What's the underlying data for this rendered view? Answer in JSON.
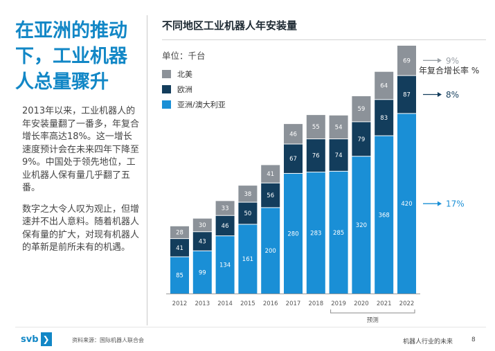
{
  "left": {
    "headline": "在亚洲的推动下，工业机器人总量骤升",
    "paragraph1": "2013年以来，工业机器人的年安装量翻了一番多，年复合增长率高达18%。这一增长速度预计会在未来四年下降至9%。中国处于领先地位，工业机器人保有量几乎翻了五番。",
    "paragraph2": "数字之大令人叹为观止，但增速并不出人意料。随着机器人保有量的扩大，对现有机器人的革新是前所未有的机遇。"
  },
  "chart_data": {
    "type": "bar",
    "stacked": true,
    "title": "不同地区工业机器人年安装量",
    "unit_label": "单位：千台",
    "categories": [
      "2012",
      "2013",
      "2014",
      "2015",
      "2016",
      "2017",
      "2018",
      "2019",
      "2020",
      "2021",
      "2022"
    ],
    "series": [
      {
        "name": "亚洲/澳大利亚",
        "color": "#1a8fd6",
        "values": [
          85,
          99,
          134,
          161,
          200,
          280,
          283,
          285,
          320,
          368,
          420
        ]
      },
      {
        "name": "欧洲",
        "color": "#133d5c",
        "values": [
          41,
          43,
          46,
          50,
          56,
          67,
          76,
          74,
          79,
          83,
          87
        ]
      },
      {
        "name": "北美",
        "color": "#8c9299",
        "values": [
          28,
          30,
          33,
          38,
          41,
          46,
          55,
          54,
          59,
          64,
          69
        ]
      }
    ],
    "legend_order": [
      "北美",
      "欧洲",
      "亚洲/澳大利亚"
    ],
    "legend_placement": "top-left",
    "ylim": [
      0,
      576
    ],
    "forecast_label": "预测",
    "forecast_categories": [
      "2019",
      "2020",
      "2021",
      "2022"
    ],
    "cagr": {
      "title": "年复合增长率 %",
      "items": [
        {
          "series": "北美",
          "value": "9%",
          "arrow_color": "#9aa0a6",
          "text_color": "#9aa0a6"
        },
        {
          "series": "欧洲",
          "value": "8%",
          "arrow_color": "#133d5c",
          "text_color": "#133d5c"
        },
        {
          "series": "亚洲/澳大利亚",
          "value": "17%",
          "arrow_color": "#1a8fd6",
          "text_color": "#1a8fd6"
        }
      ]
    }
  },
  "footer": {
    "logo_text": "svb",
    "logo_mark": "❯",
    "source": "资料来源：国际机器人联合会",
    "right_text": "机器人行业的未来",
    "page": "8"
  }
}
